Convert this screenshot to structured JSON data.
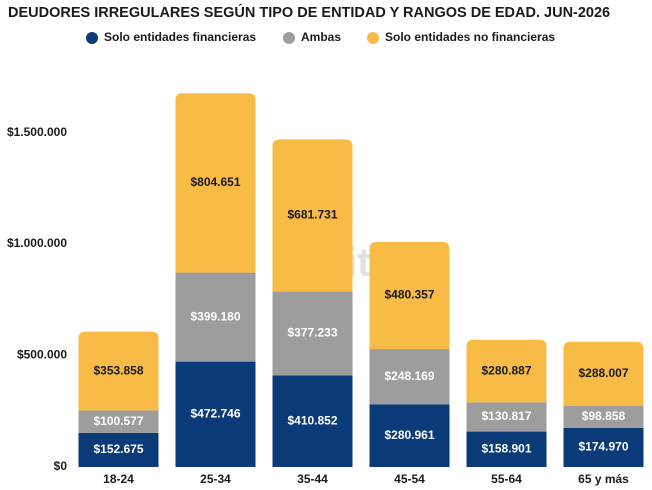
{
  "chart_data": {
    "type": "stacked_bar",
    "title": "DEUDORES IRREGULARES SEGÚN TIPO DE ENTIDAD Y RANGOS DE EDAD. JUN-2026",
    "watermark": "Politiké",
    "categories": [
      "18-24",
      "25-34",
      "35-44",
      "45-54",
      "55-64",
      "65 y más"
    ],
    "series": [
      {
        "name": "Solo entidades financieras",
        "color": "#0b3a78",
        "values": [
          152675,
          472746,
          410852,
          280961,
          158901,
          174970
        ],
        "value_labels": [
          "$152.675",
          "$472.746",
          "$410.852",
          "$280.961",
          "$158.901",
          "$174.970"
        ]
      },
      {
        "name": "Ambas",
        "color": "#9d9d9d",
        "values": [
          100577,
          399180,
          377233,
          248169,
          130817,
          98858
        ],
        "value_labels": [
          "$100.577",
          "$399.180",
          "$377.233",
          "$248.169",
          "$130.817",
          "$98.858"
        ]
      },
      {
        "name": "Solo entidades no financieras",
        "color": "#f8bb45",
        "values": [
          353858,
          804651,
          681731,
          480357,
          280887,
          288007
        ],
        "value_labels": [
          "$353.858",
          "$804.651",
          "$681.731",
          "$480.357",
          "$280.887",
          "$288.007"
        ]
      }
    ],
    "ylim": [
      0,
      1700000
    ],
    "yticks": [
      {
        "value": 0,
        "label": "$0"
      },
      {
        "value": 500000,
        "label": "$500.000"
      },
      {
        "value": 1000000,
        "label": "$1.000.000"
      },
      {
        "value": 1500000,
        "label": "$1.500.000"
      }
    ],
    "grid": false
  }
}
